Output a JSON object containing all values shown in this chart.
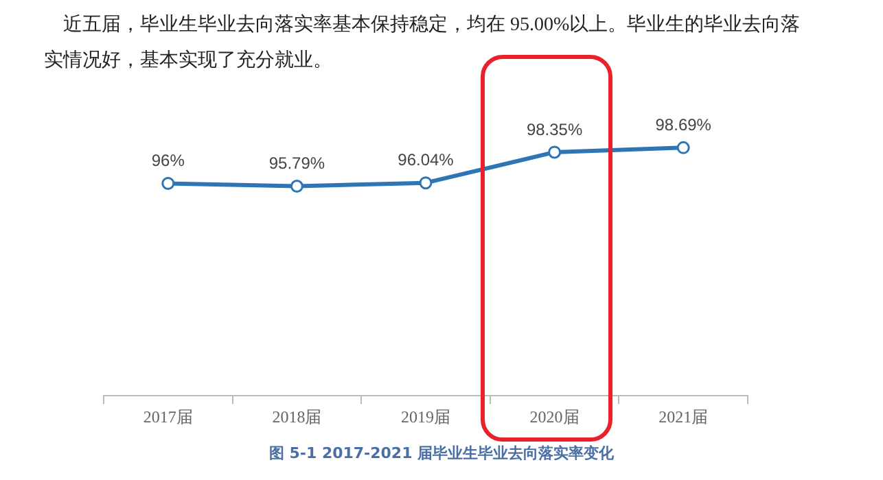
{
  "chart_data": {
    "type": "line",
    "title": "图 5-1  2017-2021 届毕业生毕业去向落实率变化",
    "annotations": [
      "近五届，毕业生毕业去向落实率基本保持稳定，均在 95.00%以上。毕业生的毕业去向落实情况好，基本实现了充分就业。"
    ],
    "categories": [
      "2017届",
      "2018届",
      "2019届",
      "2020届",
      "2021届"
    ],
    "series": [
      {
        "color": "#2e75b6",
        "values": [
          96,
          95.79,
          96.04,
          98.35,
          98.69
        ],
        "value_labels": [
          "96%",
          "95.79%",
          "96.04%",
          "98.35%",
          "98.69%"
        ]
      }
    ],
    "marker": "circle",
    "grid": false,
    "legend": false,
    "data_labels": true,
    "tick_labels": "x"
  }
}
